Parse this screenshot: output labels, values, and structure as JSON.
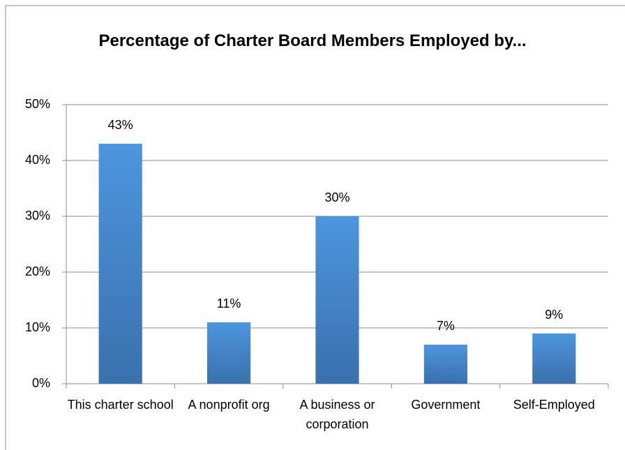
{
  "chart_data": {
    "type": "bar",
    "title": "Percentage of Charter Board Members Employed by...",
    "categories": [
      "This charter school",
      "A nonprofit org",
      "A business or corporation",
      "Government",
      "Self-Employed"
    ],
    "values": [
      43,
      11,
      30,
      7,
      9
    ],
    "value_labels": [
      "43%",
      "11%",
      "30%",
      "7%",
      "9%"
    ],
    "color": "#4a8fd6",
    "ylim": [
      0,
      50
    ],
    "yticks": [
      {
        "value": 0,
        "label": "0%"
      },
      {
        "value": 10,
        "label": "10%"
      },
      {
        "value": 20,
        "label": "20%"
      },
      {
        "value": 30,
        "label": "30%"
      },
      {
        "value": 40,
        "label": "40%"
      },
      {
        "value": 50,
        "label": "50%"
      }
    ],
    "grid": true
  }
}
